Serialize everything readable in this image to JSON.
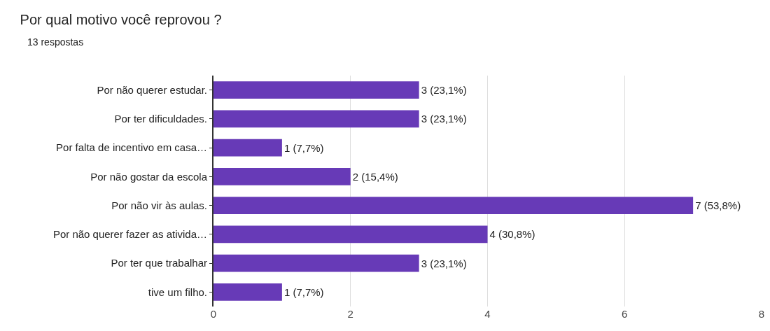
{
  "chart_data": {
    "type": "bar",
    "orientation": "horizontal",
    "title": "Por qual motivo você reprovou ?",
    "subtitle": "13 respostas",
    "categories": [
      "Por não querer estudar.",
      "Por ter dificuldades.",
      "Por falta de incentivo em casa…",
      "Por não gostar da escola",
      "Por não vir às aulas.",
      "Por não querer fazer as ativida…",
      "Por ter que trabalhar",
      "tive um filho."
    ],
    "values": [
      3,
      3,
      1,
      2,
      7,
      4,
      3,
      1
    ],
    "value_labels": [
      "3 (23,1%)",
      "3 (23,1%)",
      "1 (7,7%)",
      "2 (15,4%)",
      "7 (53,8%)",
      "4 (30,8%)",
      "3 (23,1%)",
      "1 (7,7%)"
    ],
    "color": "#673ab7",
    "xlim": [
      0,
      8
    ],
    "xticks": [
      0,
      2,
      4,
      6,
      8
    ],
    "grid": "x",
    "legend": false
  }
}
